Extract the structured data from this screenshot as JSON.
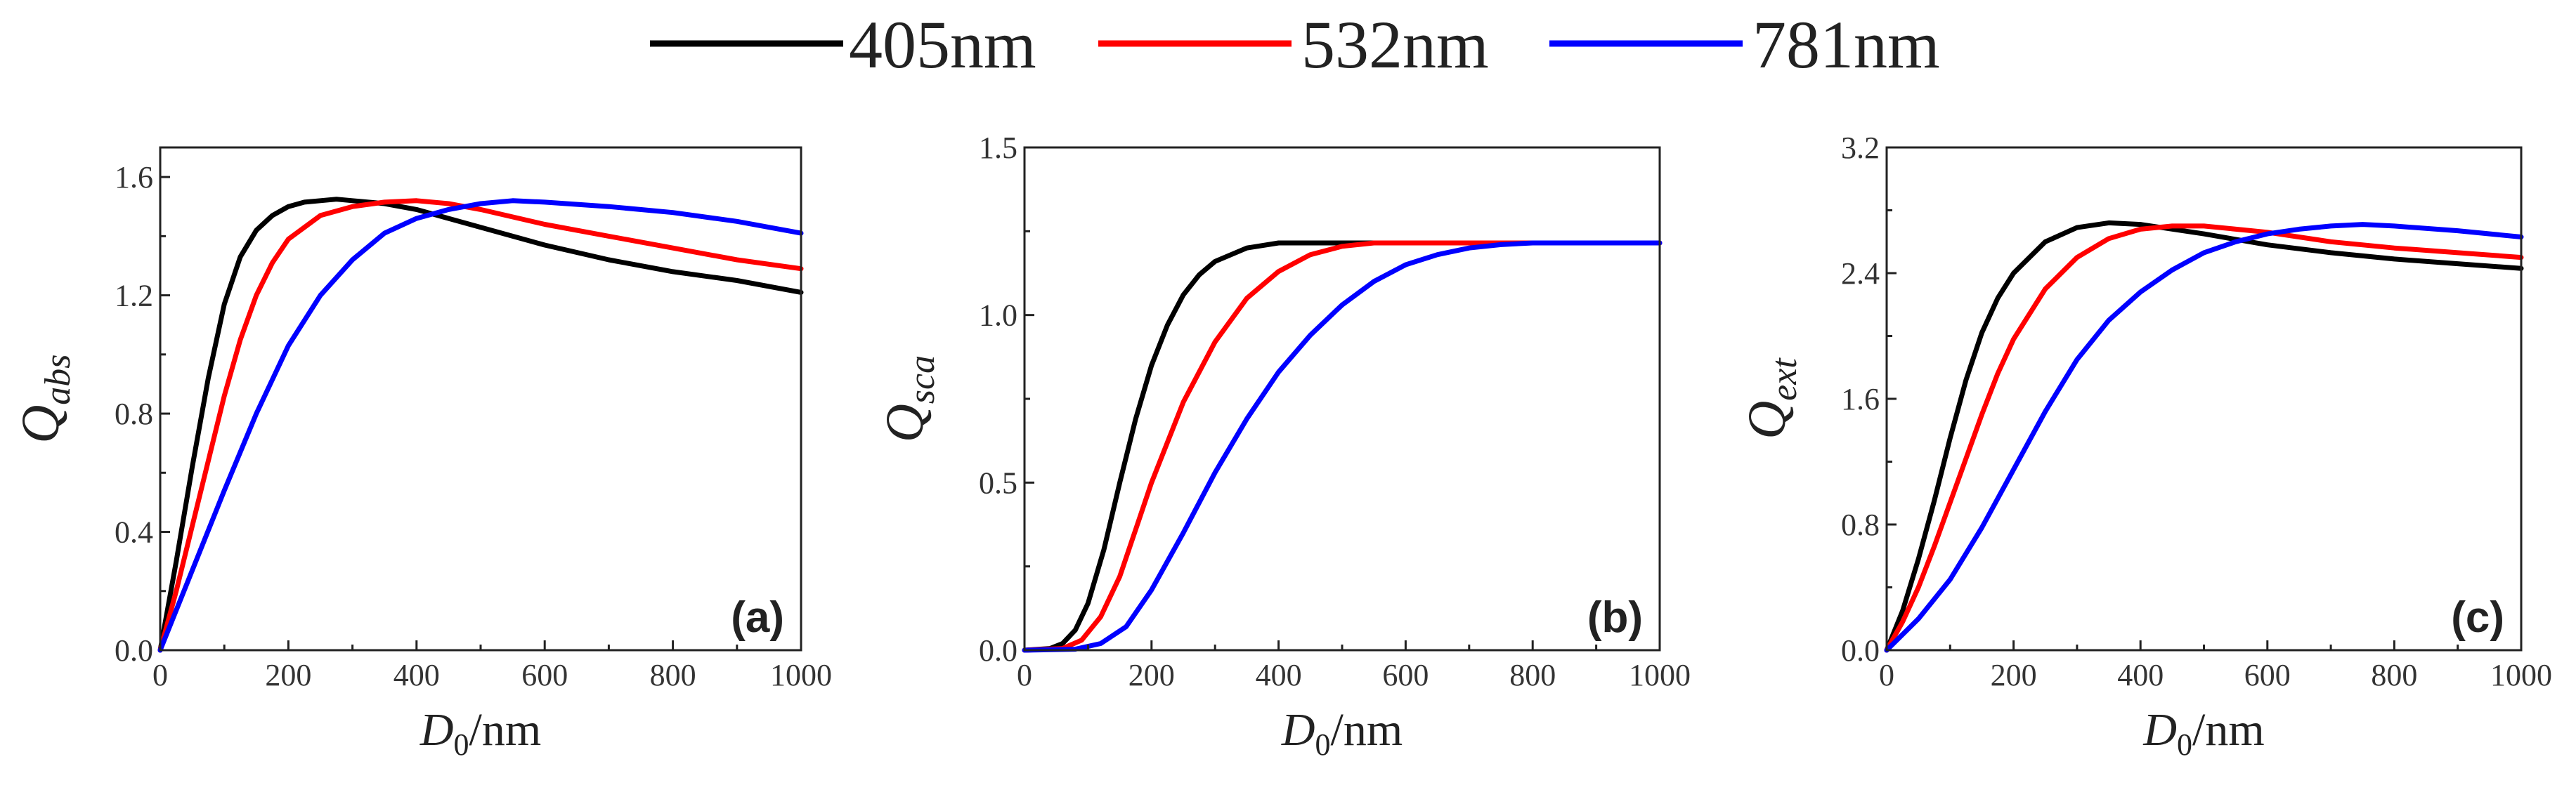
{
  "legend": {
    "items": [
      {
        "label": "405nm",
        "color": "#000000"
      },
      {
        "label": "532nm",
        "color": "#ff0000"
      },
      {
        "label": "781nm",
        "color": "#0000ff"
      }
    ]
  },
  "chart_data": [
    {
      "type": "line",
      "panel_label": "(a)",
      "xlabel_main": "D",
      "xlabel_sub": "0",
      "xlabel_unit": "/nm",
      "ylabel_main": "Q",
      "ylabel_sub": "abs",
      "xlim": [
        0,
        1000
      ],
      "ylim": [
        0,
        1.7
      ],
      "xticks": [
        0,
        200,
        400,
        600,
        800,
        1000
      ],
      "xtick_labels": [
        "0",
        "200",
        "400",
        "600",
        "800",
        "1000"
      ],
      "yticks": [
        0,
        0.4,
        0.8,
        1.2,
        1.6
      ],
      "ytick_labels": [
        "0.0",
        "0.4",
        "0.8",
        "1.2",
        "1.6"
      ],
      "grid": false,
      "series": [
        {
          "name": "405nm",
          "color": "#000000",
          "x": [
            0,
            25,
            50,
            75,
            100,
            125,
            150,
            175,
            200,
            225,
            250,
            275,
            300,
            350,
            400,
            450,
            500,
            600,
            700,
            800,
            900,
            1000
          ],
          "y": [
            0,
            0.3,
            0.62,
            0.92,
            1.17,
            1.33,
            1.42,
            1.47,
            1.5,
            1.515,
            1.52,
            1.525,
            1.52,
            1.51,
            1.49,
            1.46,
            1.43,
            1.37,
            1.32,
            1.28,
            1.25,
            1.21
          ]
        },
        {
          "name": "532nm",
          "color": "#ff0000",
          "x": [
            0,
            25,
            50,
            75,
            100,
            125,
            150,
            175,
            200,
            250,
            300,
            350,
            400,
            450,
            500,
            600,
            700,
            800,
            900,
            1000
          ],
          "y": [
            0,
            0.2,
            0.42,
            0.64,
            0.86,
            1.05,
            1.2,
            1.31,
            1.39,
            1.47,
            1.5,
            1.515,
            1.52,
            1.51,
            1.49,
            1.44,
            1.4,
            1.36,
            1.32,
            1.29
          ]
        },
        {
          "name": "781nm",
          "color": "#0000ff",
          "x": [
            0,
            50,
            100,
            150,
            200,
            250,
            300,
            350,
            400,
            450,
            500,
            550,
            600,
            700,
            800,
            900,
            1000
          ],
          "y": [
            0,
            0.27,
            0.54,
            0.8,
            1.03,
            1.2,
            1.32,
            1.41,
            1.46,
            1.49,
            1.51,
            1.52,
            1.515,
            1.5,
            1.48,
            1.45,
            1.41
          ]
        }
      ]
    },
    {
      "type": "line",
      "panel_label": "(b)",
      "xlabel_main": "D",
      "xlabel_sub": "0",
      "xlabel_unit": "/nm",
      "ylabel_main": "Q",
      "ylabel_sub": "sca",
      "xlim": [
        0,
        1000
      ],
      "ylim": [
        0,
        1.5
      ],
      "xticks": [
        0,
        200,
        400,
        600,
        800,
        1000
      ],
      "xtick_labels": [
        "0",
        "200",
        "400",
        "600",
        "800",
        "1000"
      ],
      "yticks": [
        0,
        0.5,
        1.0,
        1.5
      ],
      "ytick_labels": [
        "0.0",
        "0.5",
        "1.0",
        "1.5"
      ],
      "grid": false,
      "series": [
        {
          "name": "405nm",
          "color": "#000000",
          "x": [
            0,
            40,
            60,
            80,
            100,
            125,
            150,
            175,
            200,
            225,
            250,
            275,
            300,
            350,
            400,
            500,
            600,
            700,
            800,
            900,
            1000
          ],
          "y": [
            0,
            0.005,
            0.02,
            0.06,
            0.14,
            0.3,
            0.5,
            0.69,
            0.85,
            0.97,
            1.06,
            1.12,
            1.16,
            1.2,
            1.215,
            1.215,
            1.215,
            1.215,
            1.215,
            1.215,
            1.215
          ]
        },
        {
          "name": "532nm",
          "color": "#ff0000",
          "x": [
            0,
            60,
            90,
            120,
            150,
            175,
            200,
            250,
            300,
            350,
            400,
            450,
            500,
            550,
            600,
            700,
            800,
            900,
            1000
          ],
          "y": [
            0,
            0.005,
            0.03,
            0.1,
            0.22,
            0.36,
            0.5,
            0.74,
            0.92,
            1.05,
            1.13,
            1.18,
            1.205,
            1.215,
            1.215,
            1.215,
            1.215,
            1.215,
            1.215
          ]
        },
        {
          "name": "781nm",
          "color": "#0000ff",
          "x": [
            0,
            80,
            120,
            160,
            200,
            250,
            300,
            350,
            400,
            450,
            500,
            550,
            600,
            650,
            700,
            750,
            800,
            900,
            1000
          ],
          "y": [
            0,
            0.003,
            0.02,
            0.07,
            0.18,
            0.35,
            0.53,
            0.69,
            0.83,
            0.94,
            1.03,
            1.1,
            1.15,
            1.18,
            1.2,
            1.21,
            1.215,
            1.215,
            1.215
          ]
        }
      ]
    },
    {
      "type": "line",
      "panel_label": "(c)",
      "xlabel_main": "D",
      "xlabel_sub": "0",
      "xlabel_unit": "/nm",
      "ylabel_main": "Q",
      "ylabel_sub": "ext",
      "xlim": [
        0,
        1000
      ],
      "ylim": [
        0,
        3.2
      ],
      "xticks": [
        0,
        200,
        400,
        600,
        800,
        1000
      ],
      "xtick_labels": [
        "0",
        "200",
        "400",
        "600",
        "800",
        "1000"
      ],
      "yticks": [
        0,
        0.8,
        1.6,
        2.4,
        3.2
      ],
      "ytick_labels": [
        "0.0",
        "0.8",
        "1.6",
        "2.4",
        "3.2"
      ],
      "grid": false,
      "series": [
        {
          "name": "405nm",
          "color": "#000000",
          "x": [
            0,
            25,
            50,
            75,
            100,
            125,
            150,
            175,
            200,
            250,
            300,
            350,
            400,
            500,
            600,
            700,
            800,
            900,
            1000
          ],
          "y": [
            0,
            0.25,
            0.58,
            0.95,
            1.35,
            1.72,
            2.02,
            2.24,
            2.4,
            2.6,
            2.69,
            2.72,
            2.71,
            2.65,
            2.58,
            2.53,
            2.49,
            2.46,
            2.43
          ]
        },
        {
          "name": "532nm",
          "color": "#ff0000",
          "x": [
            0,
            25,
            50,
            75,
            100,
            125,
            150,
            175,
            200,
            250,
            300,
            350,
            400,
            450,
            500,
            600,
            700,
            800,
            900,
            1000
          ],
          "y": [
            0,
            0.18,
            0.4,
            0.66,
            0.94,
            1.22,
            1.5,
            1.76,
            1.98,
            2.3,
            2.5,
            2.62,
            2.68,
            2.7,
            2.7,
            2.66,
            2.6,
            2.56,
            2.53,
            2.5
          ]
        },
        {
          "name": "781nm",
          "color": "#0000ff",
          "x": [
            0,
            50,
            100,
            150,
            200,
            250,
            300,
            350,
            400,
            450,
            500,
            550,
            600,
            650,
            700,
            750,
            800,
            900,
            1000
          ],
          "y": [
            0,
            0.2,
            0.45,
            0.78,
            1.15,
            1.52,
            1.85,
            2.1,
            2.28,
            2.42,
            2.53,
            2.6,
            2.65,
            2.68,
            2.7,
            2.71,
            2.7,
            2.67,
            2.63
          ]
        }
      ]
    }
  ]
}
